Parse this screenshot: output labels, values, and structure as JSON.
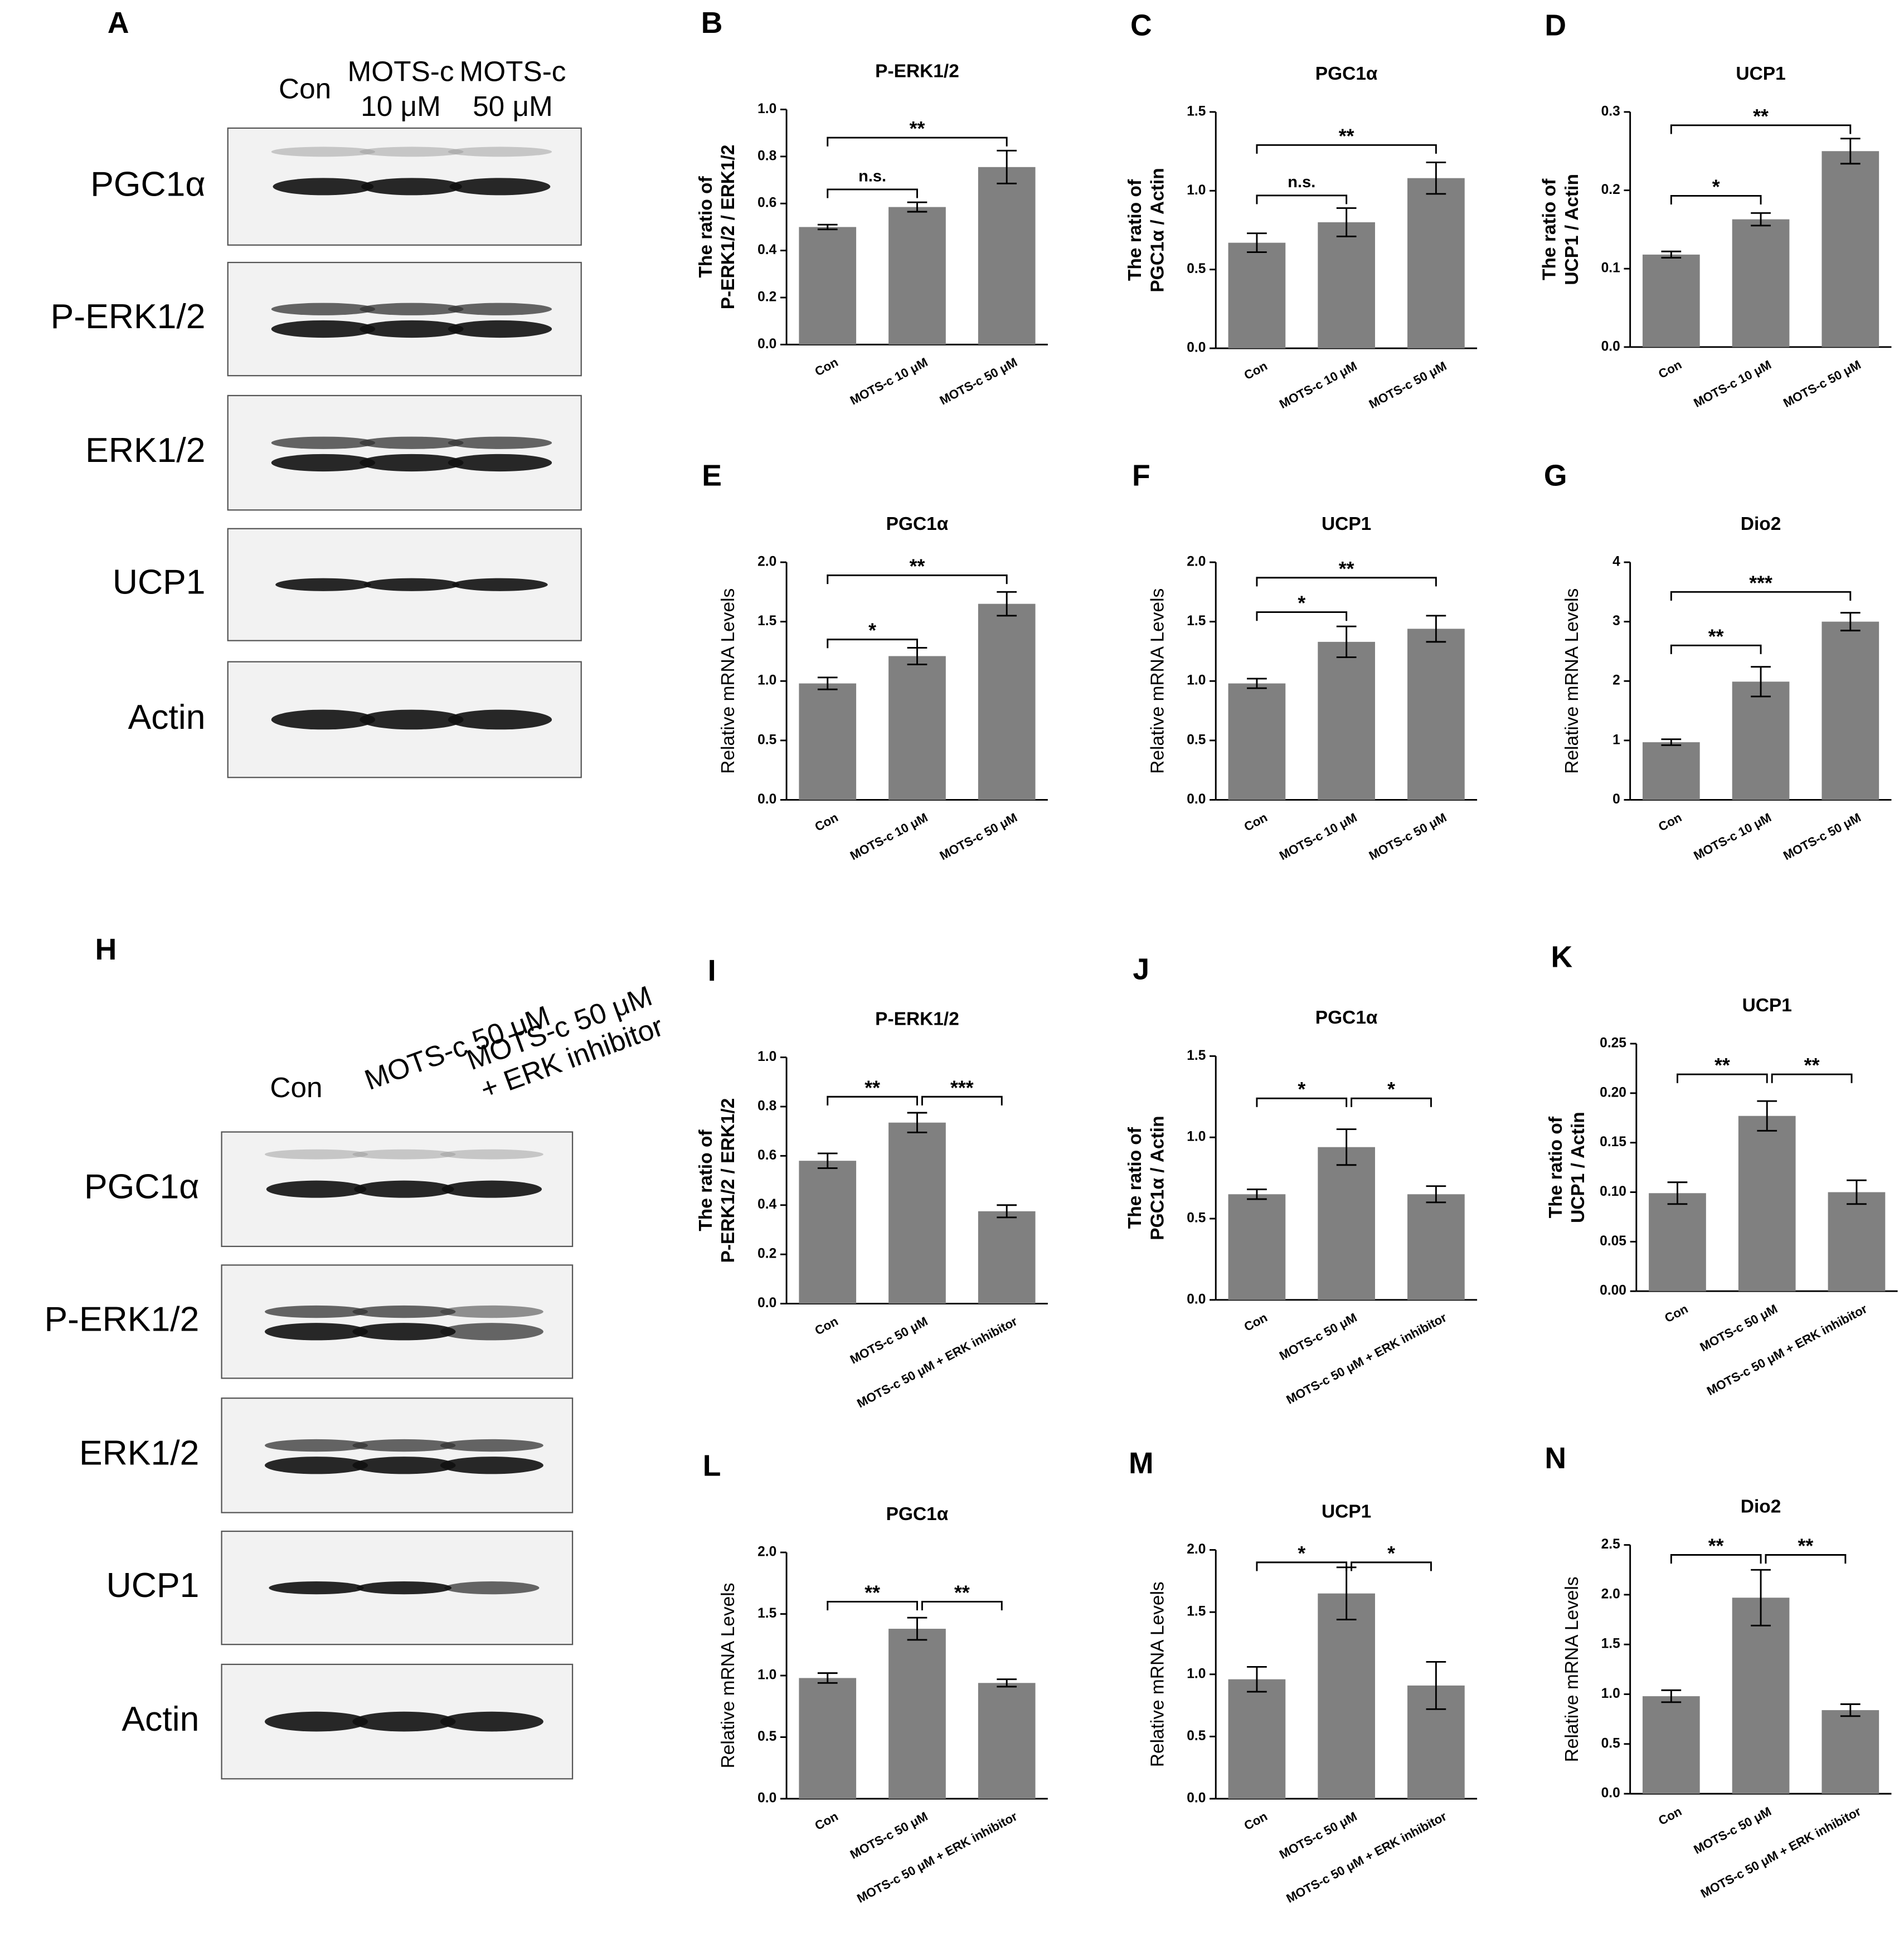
{
  "blots": [
    {
      "letter": "A",
      "lanes": [
        [
          "Con"
        ],
        [
          "MOTS-c",
          "10 μM"
        ],
        [
          "MOTS-c",
          "50 μM"
        ]
      ],
      "rows": [
        "PGC1α",
        "P-ERK1/2",
        "ERK1/2",
        "UCP1",
        "Actin"
      ]
    },
    {
      "letter": "H",
      "lanes": [
        [
          "Con"
        ],
        [
          "MOTS-c 50 μM"
        ],
        [
          "MOTS-c 50 μM",
          "+ ERK inhibitor"
        ]
      ],
      "rows": [
        "PGC1α",
        "P-ERK1/2",
        "ERK1/2",
        "UCP1",
        "Actin"
      ]
    }
  ],
  "chart_data": [
    {
      "type": "bar",
      "letter": "B",
      "title": "P-ERK1/2",
      "ylabel": [
        "The ratio of",
        "P-ERK1/2  /  ERK1/2"
      ],
      "color": "#808080",
      "categories": [
        "Con",
        "MOTS-c 10 μM",
        "MOTS-c 50 μM"
      ],
      "values": [
        0.5,
        0.585,
        0.755
      ],
      "errors": [
        0.01,
        0.02,
        0.07
      ],
      "ylim": [
        0,
        1
      ],
      "yticks": [
        {
          "value": 0,
          "label": "0.0"
        },
        0.2,
        0.4,
        0.6,
        0.8,
        {
          "value": 1,
          "label": "1.0"
        }
      ],
      "annotations": [
        {
          "text": "n.s.",
          "y": 0.66,
          "between": [
            "Con",
            "MOTS-c 10 μM"
          ]
        },
        {
          "text": "**",
          "y": 0.88,
          "between": [
            "Con",
            "MOTS-c 50 μM"
          ]
        }
      ]
    },
    {
      "type": "bar",
      "letter": "C",
      "title": "PGC1α",
      "ylabel": [
        "The ratio of",
        "PGC1α / Actin"
      ],
      "color": "#808080",
      "categories": [
        "Con",
        "MOTS-c 10 μM",
        "MOTS-c 50 μM"
      ],
      "values": [
        0.67,
        0.8,
        1.08
      ],
      "errors": [
        0.06,
        0.09,
        0.1
      ],
      "ylim": [
        0,
        1.5
      ],
      "yticks": [
        {
          "value": 0,
          "label": "0.0"
        },
        0.5,
        {
          "value": 1,
          "label": "1.0"
        },
        1.5
      ],
      "annotations": [
        {
          "text": "n.s.",
          "y": 0.97,
          "between": [
            "Con",
            "MOTS-c 10 μM"
          ]
        },
        {
          "text": "**",
          "y": 1.29,
          "between": [
            "Con",
            "MOTS-c 50 μM"
          ]
        }
      ]
    },
    {
      "type": "bar",
      "letter": "D",
      "title": "UCP1",
      "ylabel": [
        "The ratio of",
        "UCP1 / Actin"
      ],
      "color": "#808080",
      "categories": [
        "Con",
        "MOTS-c 10 μM",
        "MOTS-c 50 μM"
      ],
      "values": [
        0.118,
        0.163,
        0.25
      ],
      "errors": [
        0.004,
        0.008,
        0.016
      ],
      "ylim": [
        0,
        0.3
      ],
      "yticks": [
        {
          "value": 0,
          "label": "0.0"
        },
        0.1,
        0.2,
        0.3
      ],
      "annotations": [
        {
          "text": "*",
          "y": 0.193,
          "between": [
            "Con",
            "MOTS-c 10 μM"
          ]
        },
        {
          "text": "**",
          "y": 0.283,
          "between": [
            "Con",
            "MOTS-c 50 μM"
          ]
        }
      ]
    },
    {
      "type": "bar",
      "letter": "E",
      "title": "PGC1α",
      "ylabel": [
        "Relative mRNA Levels"
      ],
      "color": "#808080",
      "categories": [
        "Con",
        "MOTS-c 10 μM",
        "MOTS-c 50 μM"
      ],
      "values": [
        0.98,
        1.21,
        1.65
      ],
      "errors": [
        0.05,
        0.07,
        0.1
      ],
      "ylim": [
        0,
        2
      ],
      "yticks": [
        {
          "value": 0,
          "label": "0.0"
        },
        0.5,
        {
          "value": 1,
          "label": "1.0"
        },
        1.5,
        {
          "value": 2,
          "label": "2.0"
        }
      ],
      "annotations": [
        {
          "text": "*",
          "y": 1.35,
          "between": [
            "Con",
            "MOTS-c 10 μM"
          ]
        },
        {
          "text": "**",
          "y": 1.89,
          "between": [
            "Con",
            "MOTS-c 50 μM"
          ]
        }
      ]
    },
    {
      "type": "bar",
      "letter": "F",
      "title": "UCP1",
      "ylabel": [
        "Relative mRNA Levels"
      ],
      "color": "#808080",
      "categories": [
        "Con",
        "MOTS-c 10 μM",
        "MOTS-c 50 μM"
      ],
      "values": [
        0.98,
        1.33,
        1.44
      ],
      "errors": [
        0.04,
        0.13,
        0.11
      ],
      "ylim": [
        0,
        2
      ],
      "yticks": [
        {
          "value": 0,
          "label": "0.0"
        },
        0.5,
        {
          "value": 1,
          "label": "1.0"
        },
        1.5,
        {
          "value": 2,
          "label": "2.0"
        }
      ],
      "annotations": [
        {
          "text": "*",
          "y": 1.58,
          "between": [
            "Con",
            "MOTS-c 10 μM"
          ]
        },
        {
          "text": "**",
          "y": 1.87,
          "between": [
            "Con",
            "MOTS-c 50 μM"
          ]
        }
      ]
    },
    {
      "type": "bar",
      "letter": "G",
      "title": "Dio2",
      "ylabel": [
        "Relative mRNA Levels"
      ],
      "color": "#808080",
      "categories": [
        "Con",
        "MOTS-c 10 μM",
        "MOTS-c 50 μM"
      ],
      "values": [
        0.97,
        1.99,
        3.0
      ],
      "errors": [
        0.05,
        0.25,
        0.15
      ],
      "ylim": [
        0,
        4
      ],
      "yticks": [
        0,
        1,
        2,
        3,
        4
      ],
      "annotations": [
        {
          "text": "**",
          "y": 2.6,
          "between": [
            "Con",
            "MOTS-c 10 μM"
          ]
        },
        {
          "text": "***",
          "y": 3.5,
          "between": [
            "Con",
            "MOTS-c 50 μM"
          ]
        }
      ]
    },
    {
      "type": "bar",
      "letter": "I",
      "title": "P-ERK1/2",
      "ylabel": [
        "The ratio of",
        "P-ERK1/2  /  ERK1/2"
      ],
      "color": "#808080",
      "categories": [
        "Con",
        "MOTS-c 50 μM",
        "MOTS-c 50 μM + ERK inhibitor"
      ],
      "values": [
        0.58,
        0.735,
        0.375
      ],
      "errors": [
        0.03,
        0.04,
        0.025
      ],
      "ylim": [
        0,
        1
      ],
      "yticks": [
        {
          "value": 0,
          "label": "0.0"
        },
        0.2,
        0.4,
        0.6,
        0.8,
        {
          "value": 1,
          "label": "1.0"
        }
      ],
      "annotations": [
        {
          "text": "**",
          "y": 0.84,
          "between": [
            "Con",
            "MOTS-c 50 μM"
          ]
        },
        {
          "text": "***",
          "y": 0.84,
          "between": [
            "MOTS-c 50 μM",
            "MOTS-c 50 μM + ERK inhibitor"
          ]
        }
      ]
    },
    {
      "type": "bar",
      "letter": "J",
      "title": "PGC1α",
      "ylabel": [
        "The ratio of",
        "PGC1α / Actin"
      ],
      "color": "#808080",
      "categories": [
        "Con",
        "MOTS-c 50 μM",
        "MOTS-c 50 μM + ERK inhibitor"
      ],
      "values": [
        0.65,
        0.94,
        0.65
      ],
      "errors": [
        0.03,
        0.11,
        0.05
      ],
      "ylim": [
        0,
        1.5
      ],
      "yticks": [
        {
          "value": 0,
          "label": "0.0"
        },
        0.5,
        {
          "value": 1,
          "label": "1.0"
        },
        1.5
      ],
      "annotations": [
        {
          "text": "*",
          "y": 1.24,
          "between": [
            "Con",
            "MOTS-c 50 μM"
          ]
        },
        {
          "text": "*",
          "y": 1.24,
          "between": [
            "MOTS-c 50 μM",
            "MOTS-c 50 μM + ERK inhibitor"
          ]
        }
      ]
    },
    {
      "type": "bar",
      "letter": "K",
      "title": "UCP1",
      "ylabel": [
        "The ratio of",
        "UCP1 / Actin"
      ],
      "color": "#808080",
      "categories": [
        "Con",
        "MOTS-c 50 μM",
        "MOTS-c 50 μM + ERK inhibitor"
      ],
      "values": [
        0.099,
        0.177,
        0.1
      ],
      "errors": [
        0.011,
        0.015,
        0.012
      ],
      "ylim": [
        0,
        0.25
      ],
      "yticks": [
        {
          "value": 0,
          "label": "0.00"
        },
        0.05,
        {
          "value": 0.1,
          "label": "0.10"
        },
        0.15,
        {
          "value": 0.2,
          "label": "0.20"
        },
        0.25
      ],
      "annotations": [
        {
          "text": "**",
          "y": 0.219,
          "between": [
            "Con",
            "MOTS-c 50 μM"
          ]
        },
        {
          "text": "**",
          "y": 0.219,
          "between": [
            "MOTS-c 50 μM",
            "MOTS-c 50 μM + ERK inhibitor"
          ]
        }
      ]
    },
    {
      "type": "bar",
      "letter": "L",
      "title": "PGC1α",
      "ylabel": [
        "Relative mRNA Levels"
      ],
      "color": "#808080",
      "categories": [
        "Con",
        "MOTS-c 50 μM",
        "MOTS-c 50 μM + ERK inhibitor"
      ],
      "values": [
        0.98,
        1.38,
        0.94
      ],
      "errors": [
        0.04,
        0.09,
        0.03
      ],
      "ylim": [
        0,
        2
      ],
      "yticks": [
        {
          "value": 0,
          "label": "0.0"
        },
        0.5,
        {
          "value": 1,
          "label": "1.0"
        },
        1.5,
        {
          "value": 2,
          "label": "2.0"
        }
      ],
      "annotations": [
        {
          "text": "**",
          "y": 1.6,
          "between": [
            "Con",
            "MOTS-c 50 μM"
          ]
        },
        {
          "text": "**",
          "y": 1.6,
          "between": [
            "MOTS-c 50 μM",
            "MOTS-c 50 μM + ERK inhibitor"
          ]
        }
      ]
    },
    {
      "type": "bar",
      "letter": "M",
      "title": "UCP1",
      "ylabel": [
        "Relative mRNA Levels"
      ],
      "color": "#808080",
      "categories": [
        "Con",
        "MOTS-c 50 μM",
        "MOTS-c 50 μM + ERK inhibitor"
      ],
      "values": [
        0.96,
        1.65,
        0.91
      ],
      "errors": [
        0.1,
        0.21,
        0.19
      ],
      "ylim": [
        0,
        2
      ],
      "yticks": [
        {
          "value": 0,
          "label": "0.0"
        },
        0.5,
        {
          "value": 1,
          "label": "1.0"
        },
        1.5,
        {
          "value": 2,
          "label": "2.0"
        }
      ],
      "annotations": [
        {
          "text": "*",
          "y": 1.9,
          "between": [
            "Con",
            "MOTS-c 50 μM"
          ]
        },
        {
          "text": "*",
          "y": 1.9,
          "between": [
            "MOTS-c 50 μM",
            "MOTS-c 50 μM + ERK inhibitor"
          ]
        }
      ]
    },
    {
      "type": "bar",
      "letter": "N",
      "title": "Dio2",
      "ylabel": [
        "Relative mRNA Levels"
      ],
      "color": "#808080",
      "categories": [
        "Con",
        "MOTS-c 50 μM",
        "MOTS-c 50 μM + ERK inhibitor"
      ],
      "values": [
        0.98,
        1.97,
        0.84
      ],
      "errors": [
        0.06,
        0.28,
        0.06
      ],
      "ylim": [
        0,
        2.5
      ],
      "yticks": [
        {
          "value": 0,
          "label": "0.0"
        },
        0.5,
        {
          "value": 1,
          "label": "1.0"
        },
        1.5,
        {
          "value": 2,
          "label": "2.0"
        },
        2.5
      ],
      "annotations": [
        {
          "text": "**",
          "y": 2.4,
          "between": [
            "Con",
            "MOTS-c 50 μM"
          ]
        },
        {
          "text": "**",
          "y": 2.4,
          "between": [
            "MOTS-c 50 μM",
            "MOTS-c 50 μM + ERK inhibitor"
          ]
        }
      ]
    }
  ]
}
